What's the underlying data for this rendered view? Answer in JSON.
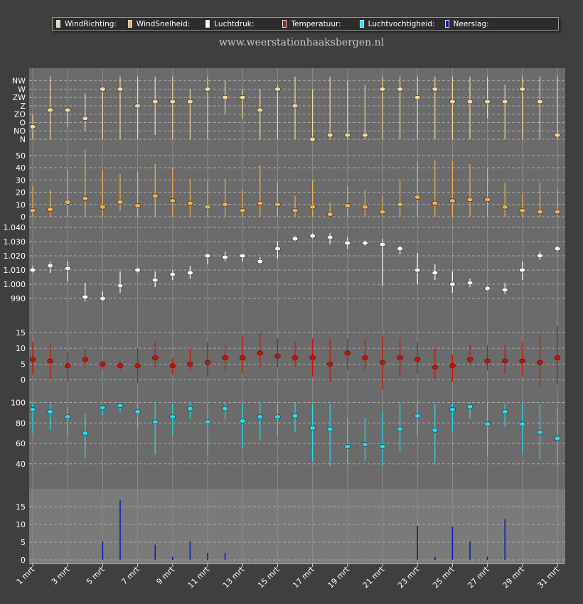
{
  "legend": [
    {
      "label": "WindRichting:",
      "color": "#f5d79a"
    },
    {
      "label": "WindSnelheid:",
      "color": "#f0b050"
    },
    {
      "label": "Luchtdruk:",
      "color": "#ffffff"
    },
    {
      "label": "Temperatuur:",
      "color": "#cc1100"
    },
    {
      "label": "Luchtvochtigheid:",
      "color": "#22ddee"
    },
    {
      "label": "Neerslag:",
      "color": "#1020b0"
    }
  ],
  "site_title": "www.weerstationhaaksbergen.nl",
  "chart_data": {
    "type": "multi-panel",
    "x_labels": [
      "1 mrt",
      "3 mrt",
      "5 mrt",
      "7 mrt",
      "9 mrt",
      "11 mrt",
      "13 mrt",
      "15 mrt",
      "17 mrt",
      "19 mrt",
      "21 mrt",
      "23 mrt",
      "25 mrt",
      "27 mrt",
      "29 mrt",
      "31 mrt"
    ],
    "days": [
      1,
      2,
      3,
      4,
      5,
      6,
      7,
      8,
      9,
      10,
      11,
      12,
      13,
      14,
      15,
      16,
      17,
      18,
      19,
      20,
      21,
      22,
      23,
      24,
      25,
      26,
      27,
      28,
      29,
      30,
      31
    ],
    "panels": [
      {
        "name": "WindRichting",
        "color": "#f5d79a",
        "type": "range-dot",
        "ylim": [
          0,
          8.5
        ],
        "ticks": [
          {
            "v": 0,
            "l": "N"
          },
          {
            "v": 1,
            "l": "NO"
          },
          {
            "v": 2,
            "l": "O"
          },
          {
            "v": 3,
            "l": "ZO"
          },
          {
            "v": 4,
            "l": "Z"
          },
          {
            "v": 5,
            "l": "ZW"
          },
          {
            "v": 6,
            "l": "W"
          },
          {
            "v": 7,
            "l": "NW"
          }
        ],
        "values": [
          1.5,
          3.5,
          3.5,
          2.5,
          6.0,
          6.0,
          4.0,
          4.5,
          4.5,
          4.5,
          6.0,
          5.0,
          5.0,
          3.5,
          6.0,
          4.0,
          0.0,
          0.5,
          0.5,
          0.5,
          6.0,
          6.0,
          5.0,
          6.0,
          4.5,
          4.5,
          4.5,
          4.5,
          6.0,
          4.5,
          0.5
        ],
        "lows": [
          0.0,
          0.0,
          1.5,
          1.0,
          0.0,
          0.0,
          0.0,
          0.5,
          0.0,
          0.0,
          0.0,
          3.0,
          2.5,
          0.0,
          0.0,
          0.0,
          0.0,
          0.0,
          0.0,
          0.0,
          0.0,
          0.0,
          0.0,
          0.0,
          0.0,
          0.0,
          2.5,
          0.0,
          0.0,
          0.0,
          0.0
        ],
        "highs": [
          3.0,
          7.5,
          3.5,
          5.5,
          6.0,
          7.5,
          7.5,
          7.5,
          7.5,
          6.0,
          7.5,
          7.0,
          6.0,
          6.0,
          6.5,
          7.5,
          6.0,
          7.5,
          7.0,
          6.5,
          7.5,
          7.5,
          7.5,
          7.5,
          7.5,
          7.5,
          7.5,
          6.5,
          7.5,
          7.5,
          7.5
        ]
      },
      {
        "name": "WindSnelheid",
        "color": "#f0b050",
        "type": "range-dot",
        "ylim": [
          0,
          58
        ],
        "ticks": [
          {
            "v": 0,
            "l": "0"
          },
          {
            "v": 10,
            "l": "10"
          },
          {
            "v": 20,
            "l": "20"
          },
          {
            "v": 30,
            "l": "30"
          },
          {
            "v": 40,
            "l": "40"
          },
          {
            "v": 50,
            "l": "50"
          }
        ],
        "values": [
          5,
          6,
          12,
          15,
          8,
          12,
          9,
          17,
          13,
          11,
          8,
          10,
          5,
          11,
          10,
          5,
          8,
          2,
          9,
          8,
          4,
          10,
          16,
          11,
          13,
          14,
          14,
          8,
          5,
          4,
          4
        ],
        "lows": [
          0,
          0,
          0,
          0,
          0,
          5,
          0,
          0,
          0,
          0,
          0,
          0,
          0,
          0,
          0,
          0,
          0,
          0,
          0,
          0,
          0,
          0,
          0,
          0,
          0,
          0,
          0,
          0,
          0,
          0,
          0
        ],
        "highs": [
          25,
          22,
          38,
          55,
          38,
          35,
          37,
          43,
          40,
          31,
          30,
          31,
          22,
          42,
          28,
          17,
          30,
          12,
          25,
          22,
          17,
          30,
          45,
          46,
          45,
          43,
          40,
          28,
          18,
          28,
          22
        ]
      },
      {
        "name": "Luchtdruk",
        "color": "#ffffff",
        "type": "range-dot",
        "ylim": [
          980,
          1045
        ],
        "ticks": [
          {
            "v": 990,
            "l": "990"
          },
          {
            "v": 1000,
            "l": "1.000"
          },
          {
            "v": 1010,
            "l": "1.010"
          },
          {
            "v": 1020,
            "l": "1.020"
          },
          {
            "v": 1030,
            "l": "1.030"
          },
          {
            "v": 1040,
            "l": "1.040"
          }
        ],
        "values": [
          1010,
          1013,
          1011,
          991,
          990,
          999,
          1010,
          1003,
          1007,
          1008,
          1020,
          1019,
          1020,
          1016,
          1025,
          1032,
          1034,
          1033,
          1029,
          1029,
          1028,
          1025,
          1010,
          1008,
          1000,
          1001,
          997,
          996,
          1010,
          1020,
          1025
        ],
        "lows": [
          1008,
          1008,
          1002,
          988,
          988,
          994,
          1008,
          998,
          1003,
          1004,
          1014,
          1016,
          1016,
          1014,
          1018,
          1031,
          1032,
          1028,
          1025,
          1027,
          999,
          1021,
          1000,
          1003,
          994,
          998,
          996,
          993,
          1003,
          1017,
          1023
        ],
        "highs": [
          1013,
          1016,
          1016,
          1001,
          995,
          1009,
          1012,
          1009,
          1010,
          1013,
          1021,
          1023,
          1021,
          1019,
          1030,
          1034,
          1036,
          1036,
          1033,
          1031,
          1032,
          1027,
          1022,
          1014,
          1009,
          1004,
          999,
          1001,
          1016,
          1023,
          1027
        ]
      },
      {
        "name": "Temperatuur",
        "color": "#cc1100",
        "type": "range-dot",
        "ylim": [
          -3,
          19
        ],
        "ticks": [
          {
            "v": 0,
            "l": "0"
          },
          {
            "v": 5,
            "l": "5"
          },
          {
            "v": 10,
            "l": "10"
          },
          {
            "v": 15,
            "l": "15"
          }
        ],
        "values": [
          6.5,
          6,
          4.5,
          6.5,
          5,
          4.5,
          4.5,
          7,
          4.5,
          5,
          5.5,
          7,
          7,
          8.5,
          7.5,
          7,
          7,
          5,
          8.5,
          7,
          5.5,
          7,
          6.5,
          4,
          4.5,
          6.5,
          6,
          6,
          6,
          5.5,
          7
        ],
        "lows": [
          1.5,
          0,
          -0.5,
          3.5,
          3.5,
          3,
          -1,
          4,
          1.5,
          3,
          1,
          3,
          2,
          4,
          4,
          4,
          1,
          -0.5,
          3,
          3,
          -3,
          1,
          2,
          0,
          -0.5,
          5,
          3,
          2,
          1,
          -2,
          -1.5
        ],
        "highs": [
          12,
          11,
          9,
          10,
          6,
          6,
          10,
          12,
          7,
          10,
          12,
          11,
          14,
          15,
          13,
          12,
          13,
          13,
          13,
          13,
          14,
          13,
          12,
          10,
          8,
          11,
          11,
          11,
          12,
          14,
          17
        ]
      },
      {
        "name": "Luchtvochtigheid",
        "color": "#22ddee",
        "type": "range-dot",
        "ylim": [
          28,
          108
        ],
        "ticks": [
          {
            "v": 40,
            "l": "40"
          },
          {
            "v": 60,
            "l": "60"
          },
          {
            "v": 80,
            "l": "80"
          },
          {
            "v": 100,
            "l": "100"
          }
        ],
        "values": [
          93,
          91,
          86,
          70,
          95,
          97,
          91,
          81,
          86,
          94,
          81,
          94,
          82,
          86,
          86,
          87,
          75,
          74,
          57,
          59,
          57,
          74,
          87,
          73,
          93,
          96,
          79,
          91,
          79,
          71,
          65
        ],
        "lows": [
          70,
          73,
          67,
          46,
          88,
          90,
          74,
          49,
          68,
          84,
          49,
          83,
          55,
          63,
          68,
          71,
          42,
          38,
          40,
          43,
          38,
          52,
          68,
          41,
          72,
          84,
          47,
          76,
          50,
          44,
          40
        ],
        "highs": [
          100,
          99,
          95,
          89,
          97,
          99,
          100,
          99,
          99,
          100,
          99,
          100,
          99,
          99,
          99,
          100,
          98,
          99,
          85,
          85,
          92,
          99,
          100,
          99,
          99,
          100,
          100,
          99,
          99,
          98,
          95
        ]
      },
      {
        "name": "Neerslag",
        "color": "#1020b0",
        "type": "bar",
        "ylim": [
          -1,
          20
        ],
        "ticks": [
          {
            "v": 0,
            "l": "0"
          },
          {
            "v": 5,
            "l": "5"
          },
          {
            "v": 10,
            "l": "10"
          },
          {
            "v": 15,
            "l": "15"
          }
        ],
        "values": [
          0,
          0,
          0,
          0,
          5.2,
          16.8,
          0,
          4.3,
          0.9,
          5.2,
          2.0,
          2.0,
          0,
          0,
          0,
          0,
          0,
          0,
          0,
          0,
          0,
          0,
          9.6,
          0.9,
          9.4,
          5.2,
          1.0,
          11.5,
          0,
          0,
          0
        ]
      }
    ]
  }
}
